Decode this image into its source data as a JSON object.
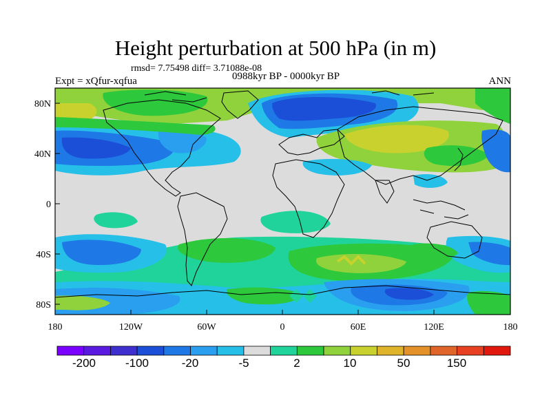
{
  "title": "Height perturbation at 500 hPa (in m)",
  "stats_line": "rmsd= 7.75498  diff= 3.71088e-08",
  "experiment": "Expt = xQfur-xqfua",
  "period": "0988kyr BP - 0000kyr BP",
  "season": "ANN",
  "chart_data": {
    "type": "contour-map",
    "title": "Height perturbation at 500 hPa (in m)",
    "x_ticks": [
      "180",
      "120W",
      "60W",
      "0",
      "60E",
      "120E",
      "180"
    ],
    "y_ticks": [
      "80N",
      "40N",
      "0",
      "40S",
      "80S"
    ],
    "colorbar": {
      "labels": [
        "-200",
        "-100",
        "-20",
        "-5",
        "2",
        "10",
        "50",
        "150"
      ],
      "colors": [
        "#7a00ff",
        "#5a1adf",
        "#3f2fcf",
        "#1c4fd8",
        "#1e78e6",
        "#2a9ff0",
        "#25bfe8",
        "#dcdcdc",
        "#1fd39a",
        "#2ec83c",
        "#8fd23b",
        "#c8d12e",
        "#e0b42a",
        "#e39128",
        "#e0652a",
        "#e84122",
        "#e0180e"
      ]
    },
    "regions": [
      {
        "name": "north-atlantic-europe-low",
        "value_range": "-100 to -20",
        "color": "#1c4fd8"
      },
      {
        "name": "north-america-low",
        "value_range": "-20 to -5",
        "color": "#1e78e6"
      },
      {
        "name": "siberia-high",
        "value_range": "10 to 50",
        "color": "#c8d12e"
      },
      {
        "name": "southern-ocean-low",
        "value_range": "-20 to -5",
        "color": "#1e78e6"
      },
      {
        "name": "south-atlantic-indian-high",
        "value_range": "2 to 10",
        "color": "#2ec83c"
      }
    ]
  }
}
